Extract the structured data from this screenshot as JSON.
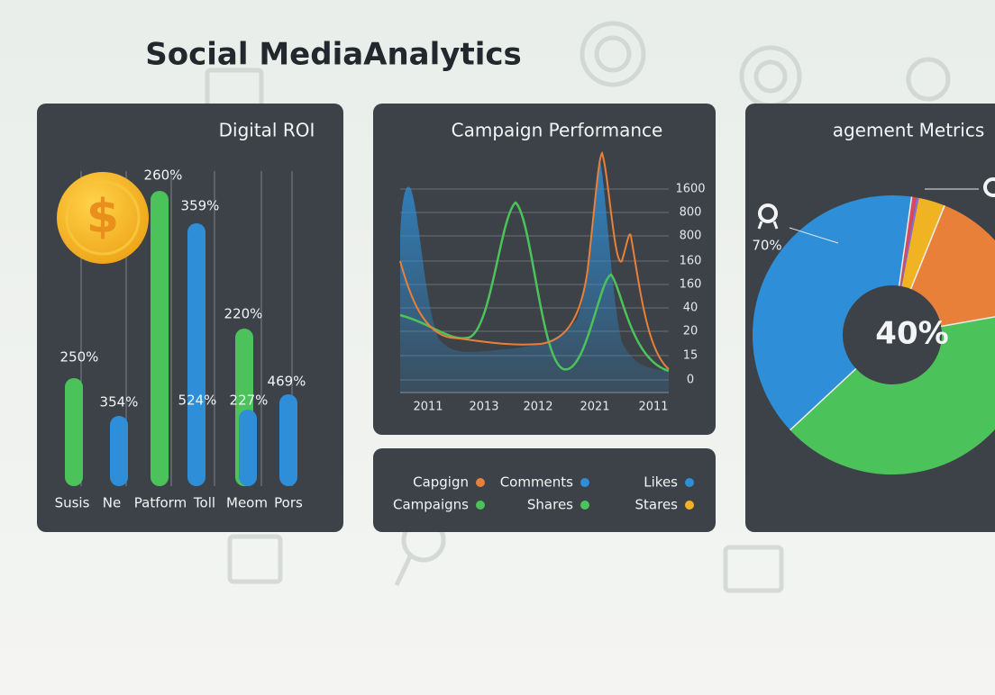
{
  "header": {
    "title": "Social MediaAnalytics"
  },
  "roi": {
    "title": "Digital ROI",
    "icon": "$",
    "value_labels": [
      "250%",
      "354%",
      "260%",
      "359%",
      "220%",
      "524%",
      "227%",
      "469%"
    ],
    "categories": [
      "Susis",
      "Ne",
      "Patform",
      "Toll",
      "Meom",
      "Pors"
    ]
  },
  "campaign": {
    "title": "Campaign Performance",
    "y_labels": [
      "1600",
      "800",
      "800",
      "160",
      "160",
      "40",
      "20",
      "15",
      "0"
    ],
    "x_labels": [
      "2011",
      "2013",
      "2012",
      "2021",
      "2011"
    ]
  },
  "legend": [
    {
      "name": "Capgign",
      "color": "#e8803a"
    },
    {
      "name": "Comments",
      "color": "#2e8fd8"
    },
    {
      "name": "Likes",
      "color": "#2e8fd8"
    },
    {
      "name": "Campaigns",
      "color": "#4cc35a"
    },
    {
      "name": "Shares",
      "color": "#4cc35a"
    },
    {
      "name": "Stares",
      "color": "#f0b323"
    }
  ],
  "engagement": {
    "title": "agement Metrics",
    "center_label": "40%",
    "callout": "70%"
  }
}
